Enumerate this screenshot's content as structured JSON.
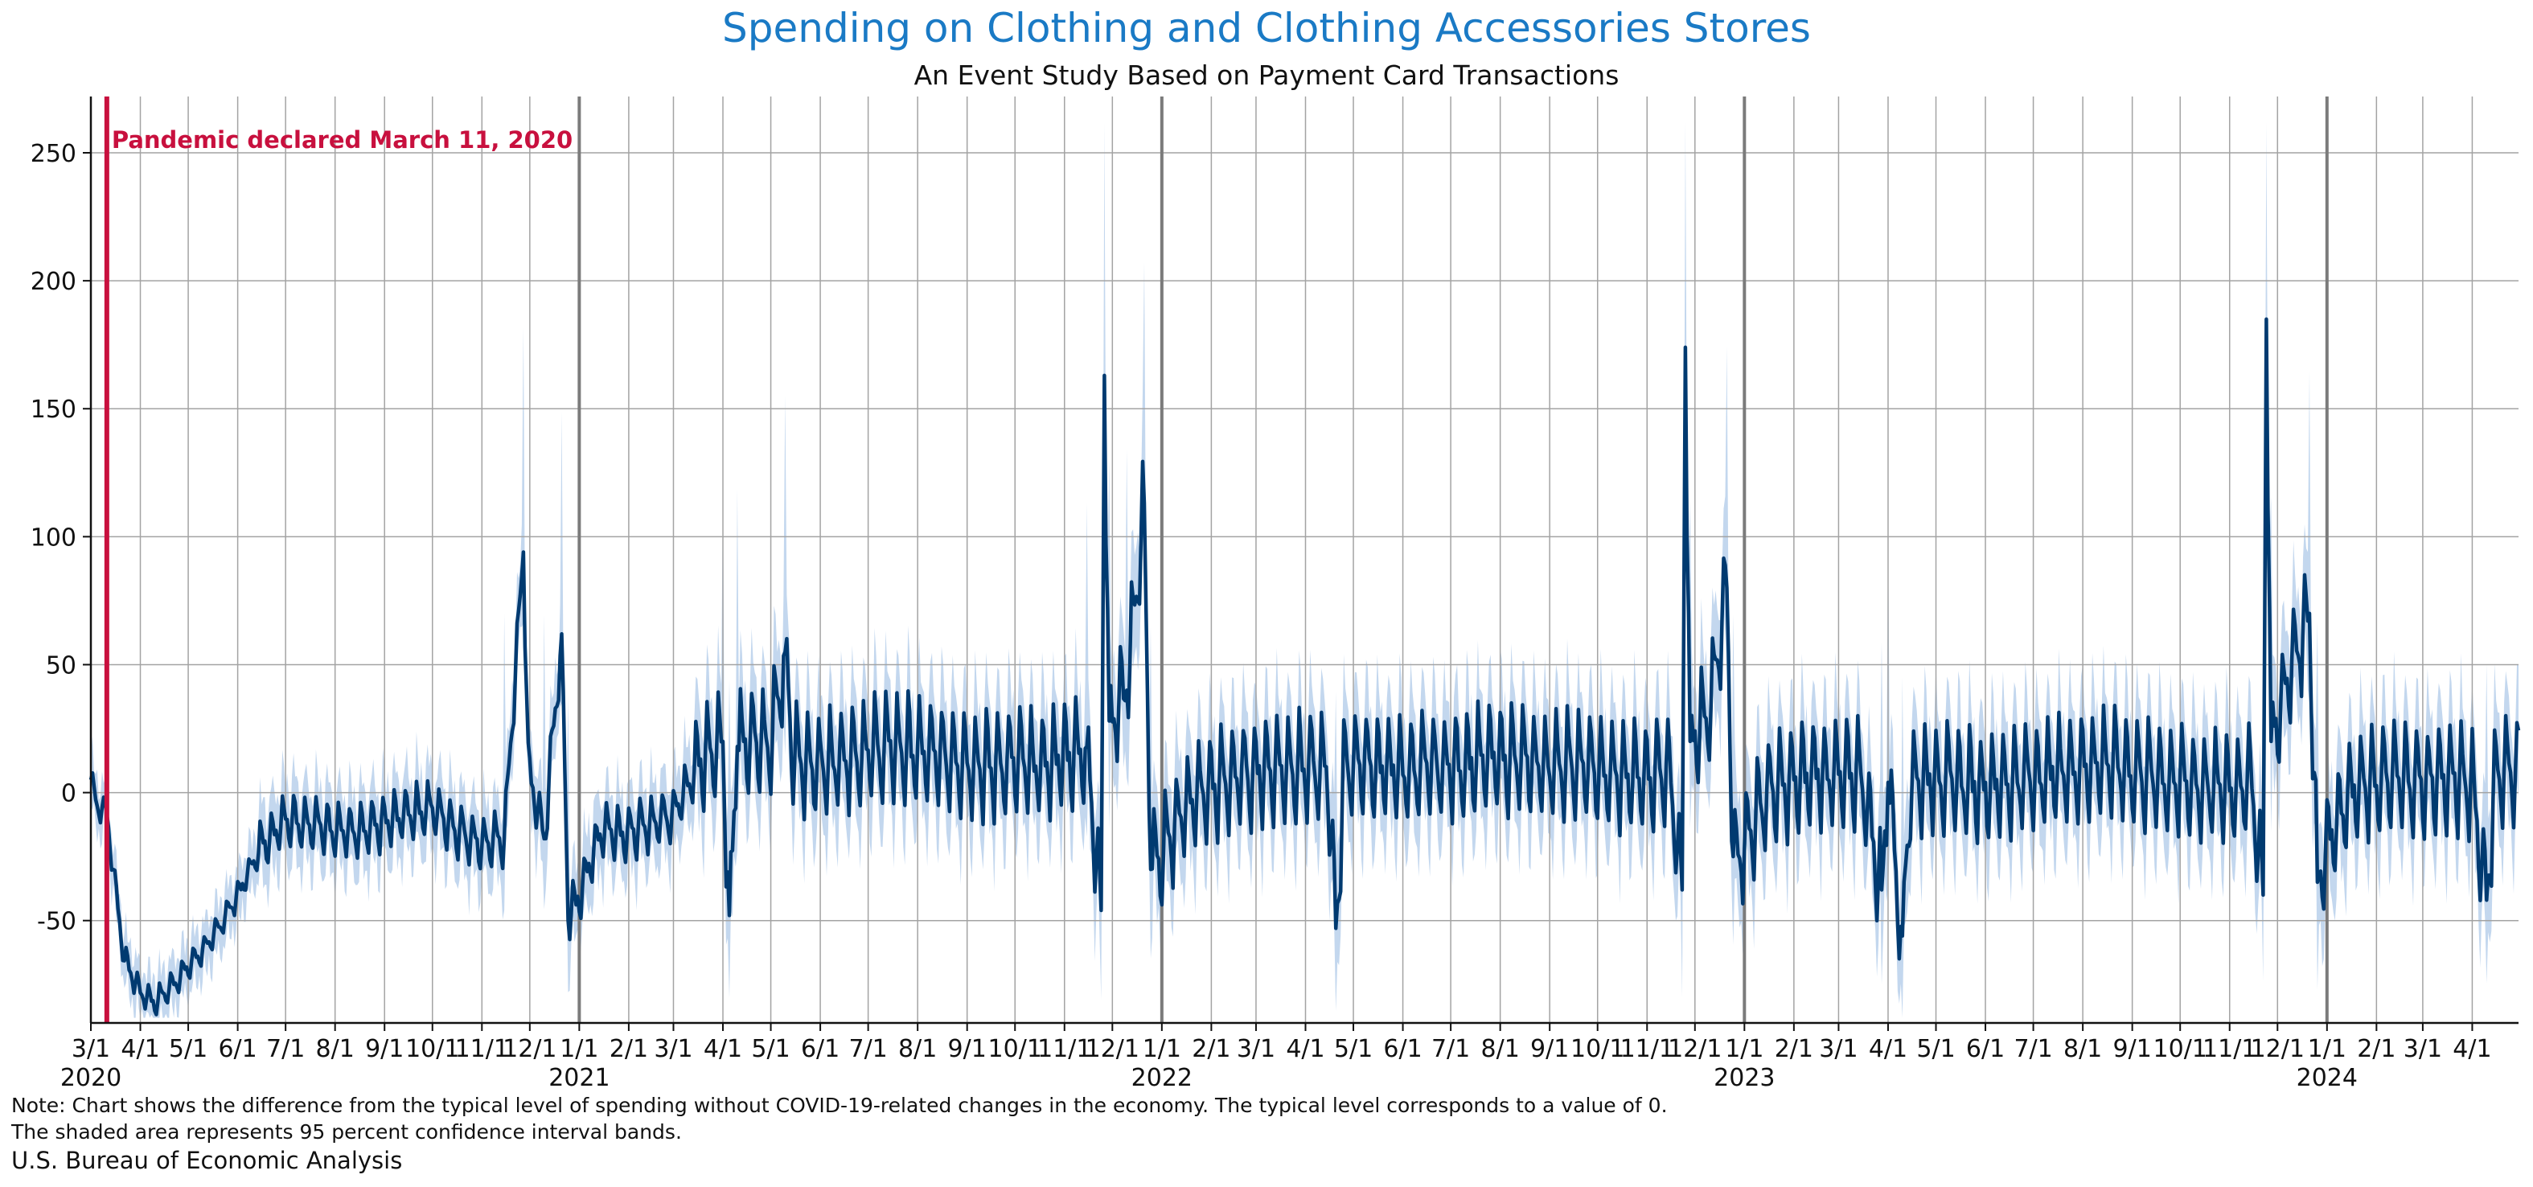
{
  "chart_data": {
    "type": "line",
    "title": "Spending on Clothing and Clothing Accessories Stores",
    "subtitle": "An Event Study Based on Payment Card Transactions",
    "xlabel": "",
    "ylabel": "",
    "x_range": [
      "2020-03-01",
      "2024-04-30"
    ],
    "ylim": [
      -90,
      272
    ],
    "y_ticks": [
      -50,
      0,
      50,
      100,
      150,
      200,
      250
    ],
    "grid": true,
    "colors": {
      "line": "#003a70",
      "band": "#c3d7ee",
      "grid": "#a3a3a3",
      "year": "#7b7b7b",
      "event": "#c8103e"
    },
    "x_tick_labels": [
      "3/1",
      "4/1",
      "5/1",
      "6/1",
      "7/1",
      "8/1",
      "9/1",
      "10/1",
      "11/1",
      "12/1",
      "1/1",
      "2/1",
      "3/1",
      "4/1",
      "5/1",
      "6/1",
      "7/1",
      "8/1",
      "9/1",
      "10/1",
      "11/1",
      "12/1",
      "1/1",
      "2/1",
      "3/1",
      "4/1",
      "5/1",
      "6/1",
      "7/1",
      "8/1",
      "9/1",
      "10/1",
      "11/1",
      "12/1",
      "1/1",
      "2/1",
      "3/1",
      "4/1",
      "5/1",
      "6/1",
      "7/1",
      "8/1",
      "9/1",
      "10/1",
      "11/1",
      "12/1",
      "1/1",
      "2/1",
      "3/1",
      "4/1"
    ],
    "year_labels": [
      "2020",
      "2021",
      "2022",
      "2023",
      "2024"
    ],
    "event": {
      "date": "2020-03-11",
      "label": "Pandemic declared March 11, 2020"
    },
    "series": [
      {
        "name": "",
        "points": [
          [
            "2020-03-01",
            5
          ],
          [
            "2020-03-05",
            -5
          ],
          [
            "2020-03-11",
            -8
          ],
          [
            "2020-03-15",
            -30
          ],
          [
            "2020-03-22",
            -65
          ],
          [
            "2020-04-01",
            -78
          ],
          [
            "2020-04-10",
            -82
          ],
          [
            "2020-04-20",
            -76
          ],
          [
            "2020-05-01",
            -68
          ],
          [
            "2020-05-15",
            -58
          ],
          [
            "2020-06-01",
            -40
          ],
          [
            "2020-06-15",
            -22
          ],
          [
            "2020-07-01",
            -10
          ],
          [
            "2020-07-15",
            -12
          ],
          [
            "2020-08-01",
            -14
          ],
          [
            "2020-08-15",
            -16
          ],
          [
            "2020-09-01",
            -12
          ],
          [
            "2020-09-15",
            -8
          ],
          [
            "2020-10-01",
            -6
          ],
          [
            "2020-10-15",
            -14
          ],
          [
            "2020-11-01",
            -20
          ],
          [
            "2020-11-15",
            -18
          ],
          [
            "2020-11-27",
            94
          ],
          [
            "2020-11-30",
            10
          ],
          [
            "2020-12-10",
            -18
          ],
          [
            "2020-12-21",
            62
          ],
          [
            "2020-12-25",
            -50
          ],
          [
            "2021-01-01",
            -40
          ],
          [
            "2021-01-15",
            -14
          ],
          [
            "2021-02-01",
            -16
          ],
          [
            "2021-02-15",
            -12
          ],
          [
            "2021-03-01",
            -8
          ],
          [
            "2021-03-15",
            10
          ],
          [
            "2021-04-01",
            20
          ],
          [
            "2021-04-05",
            -48
          ],
          [
            "2021-04-10",
            18
          ],
          [
            "2021-04-20",
            22
          ],
          [
            "2021-05-01",
            18
          ],
          [
            "2021-05-10",
            55
          ],
          [
            "2021-05-15",
            14
          ],
          [
            "2021-06-01",
            10
          ],
          [
            "2021-06-15",
            14
          ],
          [
            "2021-07-01",
            16
          ],
          [
            "2021-07-15",
            18
          ],
          [
            "2021-08-01",
            16
          ],
          [
            "2021-08-15",
            14
          ],
          [
            "2021-09-01",
            12
          ],
          [
            "2021-09-15",
            10
          ],
          [
            "2021-10-01",
            12
          ],
          [
            "2021-10-15",
            10
          ],
          [
            "2021-11-01",
            14
          ],
          [
            "2021-11-15",
            18
          ],
          [
            "2021-11-24",
            -46
          ],
          [
            "2021-11-26",
            163
          ],
          [
            "2021-11-29",
            28
          ],
          [
            "2021-12-10",
            40
          ],
          [
            "2021-12-21",
            113
          ],
          [
            "2021-12-25",
            -30
          ],
          [
            "2022-01-01",
            -25
          ],
          [
            "2022-01-15",
            -5
          ],
          [
            "2022-02-01",
            2
          ],
          [
            "2022-02-15",
            6
          ],
          [
            "2022-03-01",
            8
          ],
          [
            "2022-03-15",
            10
          ],
          [
            "2022-04-01",
            10
          ],
          [
            "2022-04-15",
            8
          ],
          [
            "2022-04-20",
            -53
          ],
          [
            "2022-04-25",
            8
          ],
          [
            "2022-05-01",
            12
          ],
          [
            "2022-05-15",
            10
          ],
          [
            "2022-06-01",
            8
          ],
          [
            "2022-06-15",
            10
          ],
          [
            "2022-07-01",
            10
          ],
          [
            "2022-07-15",
            12
          ],
          [
            "2022-08-01",
            14
          ],
          [
            "2022-08-15",
            12
          ],
          [
            "2022-09-01",
            10
          ],
          [
            "2022-09-15",
            12
          ],
          [
            "2022-10-01",
            8
          ],
          [
            "2022-10-15",
            6
          ],
          [
            "2022-11-01",
            6
          ],
          [
            "2022-11-15",
            10
          ],
          [
            "2022-11-23",
            -38
          ],
          [
            "2022-11-25",
            174
          ],
          [
            "2022-11-28",
            20
          ],
          [
            "2022-12-10",
            30
          ],
          [
            "2022-12-21",
            80
          ],
          [
            "2022-12-25",
            -25
          ],
          [
            "2023-01-01",
            -20
          ],
          [
            "2023-01-15",
            0
          ],
          [
            "2023-02-01",
            4
          ],
          [
            "2023-02-15",
            8
          ],
          [
            "2023-03-01",
            6
          ],
          [
            "2023-03-15",
            8
          ],
          [
            "2023-03-28",
            -38
          ],
          [
            "2023-04-01",
            4
          ],
          [
            "2023-04-10",
            -56
          ],
          [
            "2023-04-15",
            4
          ],
          [
            "2023-05-01",
            6
          ],
          [
            "2023-05-15",
            4
          ],
          [
            "2023-06-01",
            2
          ],
          [
            "2023-06-15",
            4
          ],
          [
            "2023-07-01",
            6
          ],
          [
            "2023-07-15",
            8
          ],
          [
            "2023-08-01",
            10
          ],
          [
            "2023-08-15",
            12
          ],
          [
            "2023-09-01",
            8
          ],
          [
            "2023-09-15",
            6
          ],
          [
            "2023-10-01",
            4
          ],
          [
            "2023-10-15",
            2
          ],
          [
            "2023-11-01",
            2
          ],
          [
            "2023-11-15",
            4
          ],
          [
            "2023-11-22",
            -40
          ],
          [
            "2023-11-24",
            185
          ],
          [
            "2023-11-27",
            20
          ],
          [
            "2023-12-10",
            50
          ],
          [
            "2023-12-21",
            70
          ],
          [
            "2023-12-26",
            -35
          ],
          [
            "2024-01-01",
            -20
          ],
          [
            "2024-01-15",
            0
          ],
          [
            "2024-02-01",
            4
          ],
          [
            "2024-02-15",
            6
          ],
          [
            "2024-03-01",
            4
          ],
          [
            "2024-03-15",
            6
          ],
          [
            "2024-04-01",
            4
          ],
          [
            "2024-04-10",
            -42
          ],
          [
            "2024-04-15",
            6
          ],
          [
            "2024-04-30",
            10
          ]
        ]
      }
    ]
  },
  "footer": {
    "note_line1": "Note: Chart shows the difference from the typical level of spending without COVID-19-related changes in the economy. The typical level corresponds to a value of 0.",
    "note_line2": "The shaded area represents 95 percent confidence interval bands.",
    "source": "U.S. Bureau of Economic Analysis"
  }
}
